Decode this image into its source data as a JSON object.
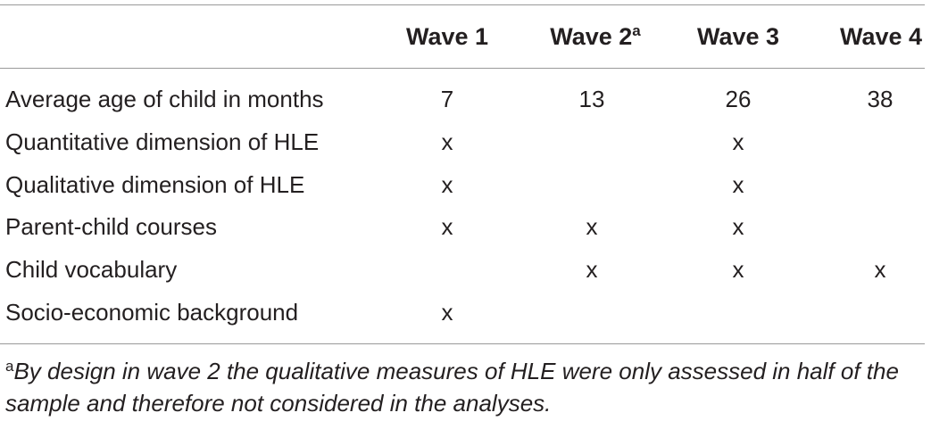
{
  "table": {
    "headers": [
      {
        "label": "Wave 1",
        "sup": ""
      },
      {
        "label": "Wave 2",
        "sup": "a"
      },
      {
        "label": "Wave 3",
        "sup": ""
      },
      {
        "label": "Wave 4",
        "sup": ""
      }
    ],
    "rows": [
      {
        "label": "Average age of child in months",
        "values": [
          "7",
          "13",
          "26",
          "38"
        ]
      },
      {
        "label": "Quantitative dimension of HLE",
        "values": [
          "x",
          "",
          "x",
          ""
        ]
      },
      {
        "label": "Qualitative dimension of HLE",
        "values": [
          "x",
          "",
          "x",
          ""
        ]
      },
      {
        "label": "Parent-child courses",
        "values": [
          "x",
          "x",
          "x",
          ""
        ]
      },
      {
        "label": "Child vocabulary",
        "values": [
          "",
          "x",
          "x",
          "x"
        ]
      },
      {
        "label": "Socio-economic background",
        "values": [
          "x",
          "",
          "",
          ""
        ]
      }
    ]
  },
  "footnote": {
    "mark": "a",
    "text": "By design in wave 2 the qualitative measures of HLE were only assessed in half of the sample and therefore not considered in the analyses."
  }
}
